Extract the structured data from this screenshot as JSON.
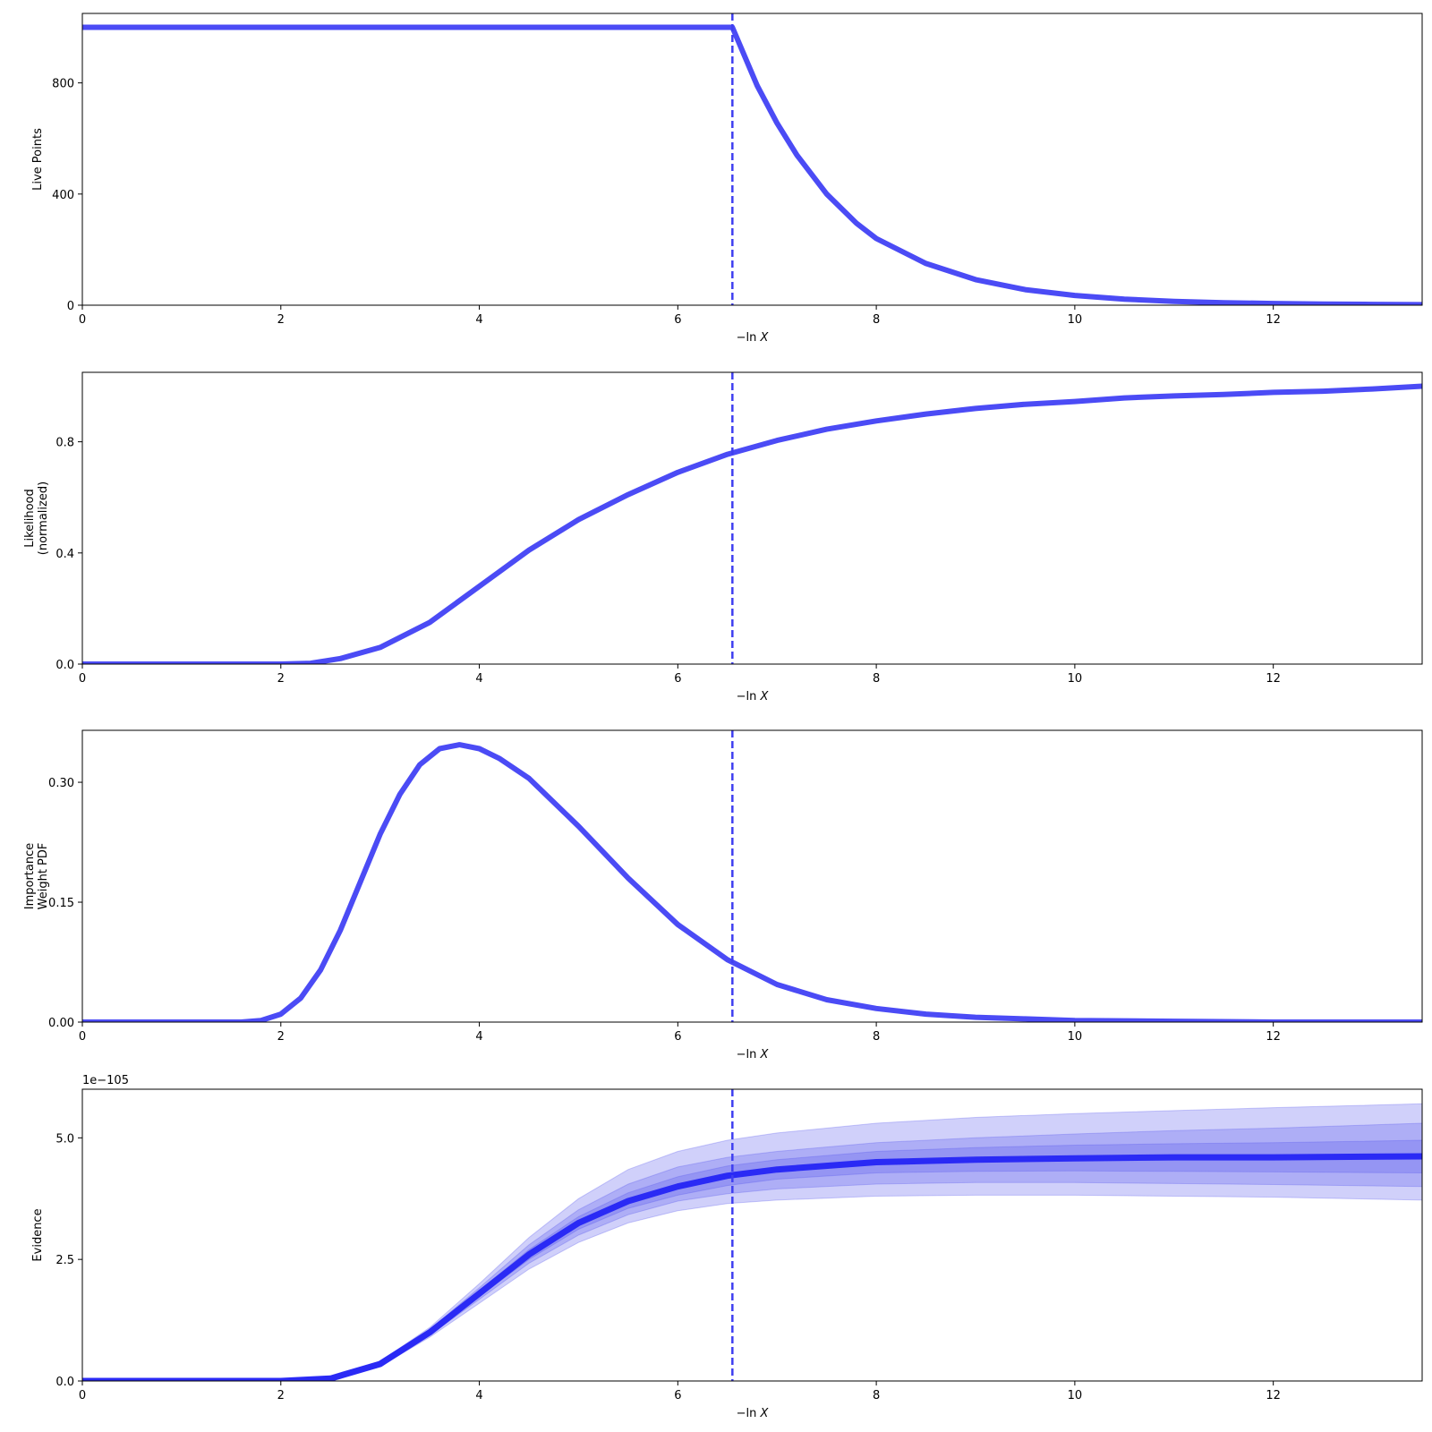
{
  "colors": {
    "line": "#4b4bf5",
    "evidence_line": "#2a2af5",
    "vline": "#3f3ff0",
    "band": "#5555ee",
    "axes": "#000000"
  },
  "vline_x": 6.55,
  "chart_data": [
    {
      "type": "line",
      "id": "live-points",
      "ylabel": [
        "Live Points"
      ],
      "xlabel_prefix": "−ln ",
      "xlabel_var": "X",
      "xlim": [
        0,
        13.5
      ],
      "ylim": [
        0,
        1050
      ],
      "xticks": [
        0,
        2,
        4,
        6,
        8,
        10,
        12
      ],
      "yticks": [
        0,
        400,
        800
      ],
      "yticklabels": [
        "0",
        "400",
        "800"
      ],
      "series": [
        {
          "x": [
            0,
            6.5,
            6.55,
            6.8,
            7.0,
            7.2,
            7.5,
            7.8,
            8.0,
            8.5,
            9.0,
            9.5,
            10.0,
            10.5,
            11.0,
            11.5,
            12.0,
            12.5,
            13.0,
            13.5
          ],
          "y": [
            1000,
            1000,
            1000,
            790,
            655,
            540,
            400,
            295,
            240,
            150,
            92,
            56,
            35,
            22,
            14,
            9,
            6,
            4,
            3,
            2
          ]
        }
      ]
    },
    {
      "type": "line",
      "id": "likelihood",
      "ylabel": [
        "Likelihood",
        "(normalized)"
      ],
      "xlabel_prefix": "−ln ",
      "xlabel_var": "X",
      "xlim": [
        0,
        13.5
      ],
      "ylim": [
        0,
        1.05
      ],
      "xticks": [
        0,
        2,
        4,
        6,
        8,
        10,
        12
      ],
      "yticks": [
        0,
        0.4,
        0.8
      ],
      "yticklabels": [
        "0.0",
        "0.4",
        "0.8"
      ],
      "series": [
        {
          "x": [
            0,
            2.0,
            2.3,
            2.6,
            3.0,
            3.5,
            4.0,
            4.5,
            5.0,
            5.5,
            6.0,
            6.5,
            7.0,
            7.5,
            8.0,
            8.5,
            9.0,
            9.5,
            10.0,
            10.5,
            11.0,
            11.5,
            12.0,
            12.5,
            13.0,
            13.5
          ],
          "y": [
            0,
            0,
            0.003,
            0.02,
            0.06,
            0.15,
            0.28,
            0.41,
            0.52,
            0.61,
            0.69,
            0.755,
            0.805,
            0.845,
            0.875,
            0.9,
            0.92,
            0.935,
            0.945,
            0.958,
            0.965,
            0.97,
            0.978,
            0.982,
            0.99,
            1.0
          ]
        }
      ]
    },
    {
      "type": "line",
      "id": "importance-weight",
      "ylabel": [
        "Importance",
        "Weight PDF"
      ],
      "xlabel_prefix": "−ln ",
      "xlabel_var": "X",
      "xlim": [
        0,
        13.5
      ],
      "ylim": [
        0,
        0.365
      ],
      "xticks": [
        0,
        2,
        4,
        6,
        8,
        10,
        12
      ],
      "yticks": [
        0,
        0.15,
        0.3
      ],
      "yticklabels": [
        "0.00",
        "0.15",
        "0.30"
      ],
      "series": [
        {
          "x": [
            0,
            1.6,
            1.8,
            2.0,
            2.2,
            2.4,
            2.6,
            2.8,
            3.0,
            3.2,
            3.4,
            3.6,
            3.8,
            4.0,
            4.2,
            4.5,
            5.0,
            5.5,
            6.0,
            6.5,
            7.0,
            7.5,
            8.0,
            8.5,
            9.0,
            9.5,
            10.0,
            11.0,
            12.0,
            13.5
          ],
          "y": [
            0,
            0,
            0.002,
            0.01,
            0.03,
            0.065,
            0.115,
            0.175,
            0.235,
            0.285,
            0.322,
            0.342,
            0.347,
            0.342,
            0.33,
            0.305,
            0.245,
            0.18,
            0.122,
            0.078,
            0.047,
            0.028,
            0.017,
            0.01,
            0.006,
            0.004,
            0.002,
            0.001,
            0,
            0
          ]
        }
      ]
    },
    {
      "type": "area",
      "id": "evidence",
      "ylabel": [
        "Evidence"
      ],
      "xlabel_prefix": "−ln ",
      "xlabel_var": "X",
      "offset_label": "1e−105",
      "xlim": [
        0,
        13.5
      ],
      "ylim": [
        0,
        6.0
      ],
      "xticks": [
        0,
        2,
        4,
        6,
        8,
        10,
        12
      ],
      "yticks": [
        0,
        2.5,
        5.0
      ],
      "yticklabels": [
        "0.0",
        "2.5",
        "5.0"
      ],
      "x": [
        0,
        2.0,
        2.5,
        3.0,
        3.5,
        4.0,
        4.5,
        5.0,
        5.5,
        6.0,
        6.5,
        7.0,
        8.0,
        9.0,
        10.0,
        11.0,
        12.0,
        13.5
      ],
      "median": [
        0,
        0,
        0.05,
        0.35,
        1.0,
        1.8,
        2.6,
        3.25,
        3.7,
        4.0,
        4.22,
        4.35,
        4.5,
        4.55,
        4.58,
        4.6,
        4.6,
        4.62
      ],
      "bands": [
        {
          "upper": [
            0,
            0,
            0.06,
            0.4,
            1.1,
            2.0,
            2.95,
            3.75,
            4.35,
            4.72,
            4.95,
            5.1,
            5.3,
            5.42,
            5.5,
            5.56,
            5.62,
            5.7
          ],
          "lower": [
            0,
            0,
            0.04,
            0.3,
            0.9,
            1.6,
            2.3,
            2.85,
            3.25,
            3.5,
            3.65,
            3.72,
            3.8,
            3.82,
            3.82,
            3.8,
            3.78,
            3.72
          ]
        },
        {
          "upper": [
            0,
            0,
            0.055,
            0.38,
            1.06,
            1.92,
            2.8,
            3.52,
            4.05,
            4.4,
            4.6,
            4.72,
            4.9,
            5.0,
            5.08,
            5.15,
            5.2,
            5.3
          ],
          "lower": [
            0,
            0,
            0.045,
            0.32,
            0.94,
            1.68,
            2.42,
            3.0,
            3.42,
            3.7,
            3.85,
            3.95,
            4.05,
            4.08,
            4.08,
            4.06,
            4.04,
            4.0
          ]
        },
        {
          "upper": [
            0,
            0,
            0.052,
            0.36,
            1.03,
            1.86,
            2.7,
            3.38,
            3.87,
            4.2,
            4.42,
            4.55,
            4.72,
            4.8,
            4.85,
            4.88,
            4.9,
            4.95
          ],
          "lower": [
            0,
            0,
            0.048,
            0.34,
            0.97,
            1.74,
            2.5,
            3.12,
            3.55,
            3.82,
            4.02,
            4.15,
            4.28,
            4.31,
            4.32,
            4.31,
            4.3,
            4.28
          ]
        }
      ]
    }
  ]
}
